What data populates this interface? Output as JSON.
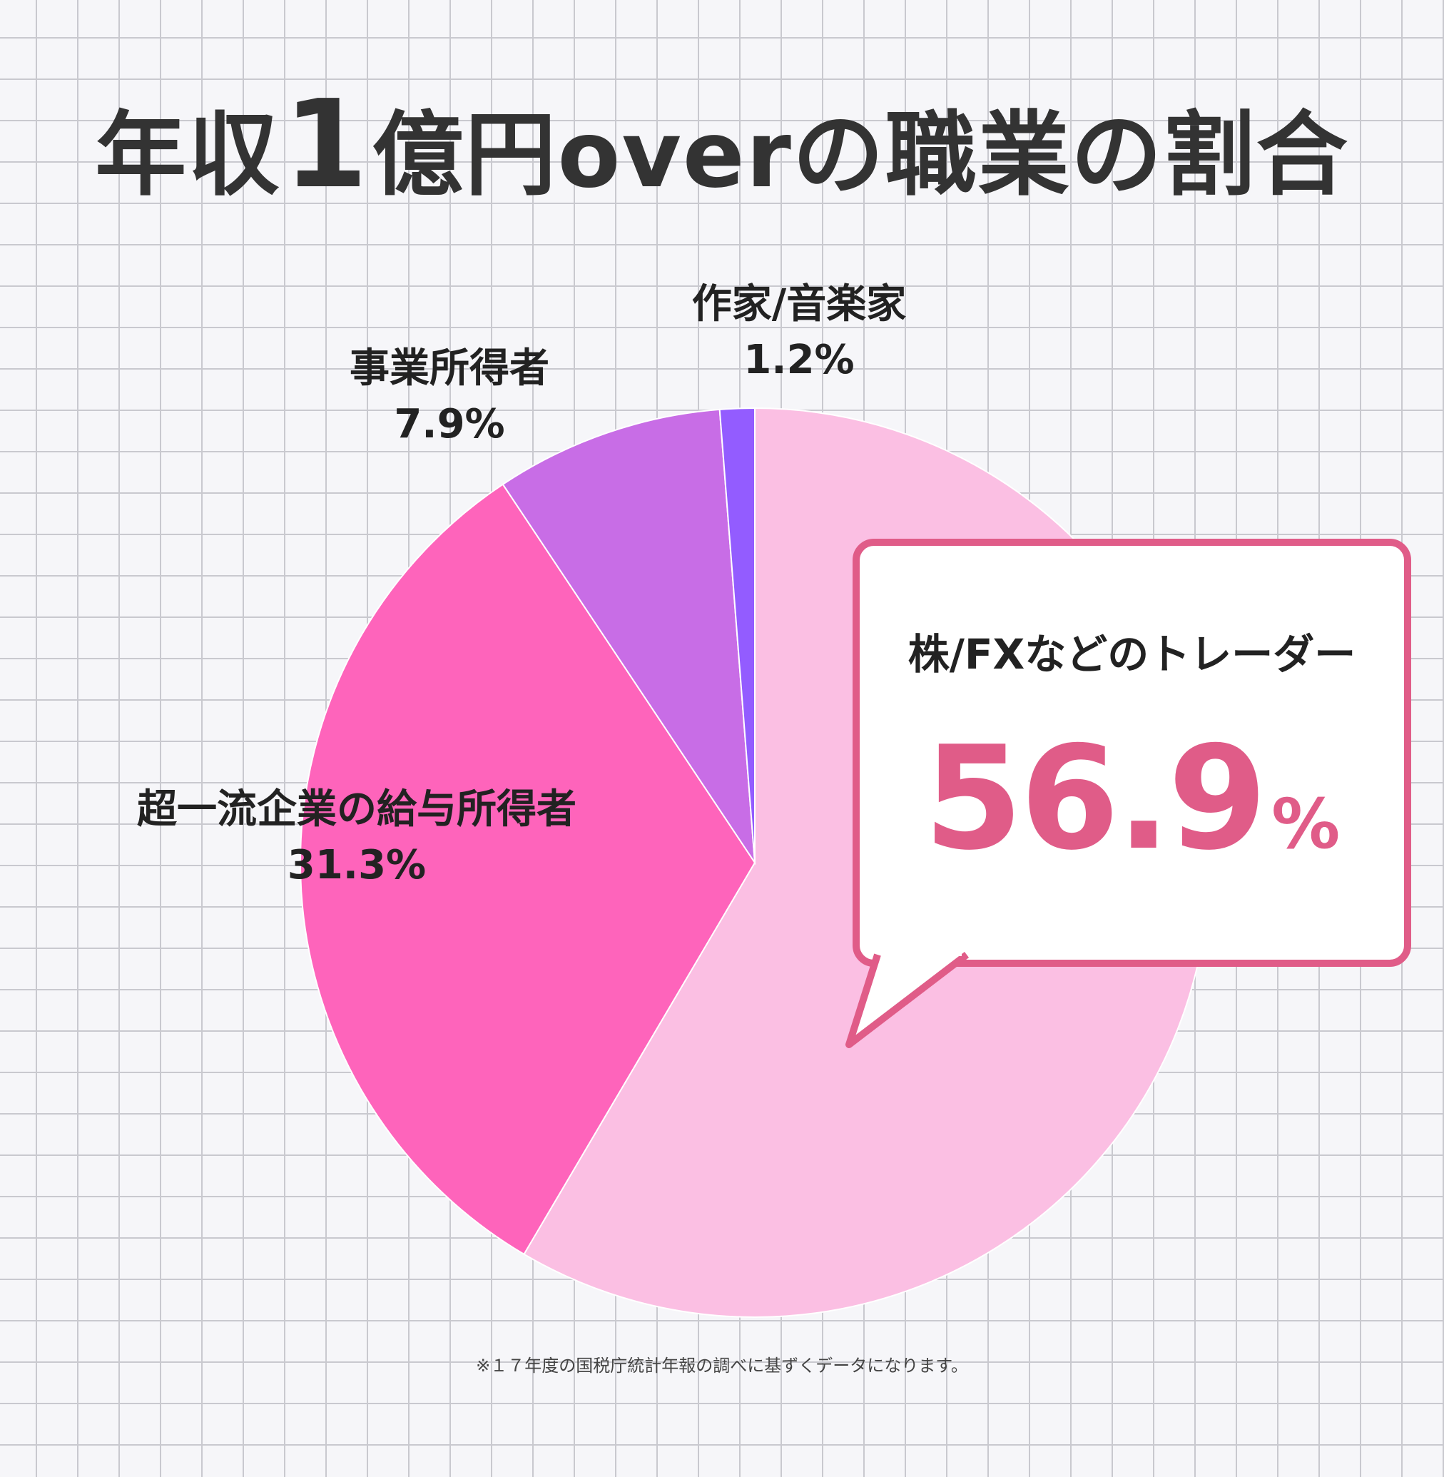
{
  "title": {
    "pre": "年収",
    "highlight": "1",
    "post": "億円overの職業の割合"
  },
  "chart_data": {
    "type": "pie",
    "title": "年収1億円overの職業の割合",
    "slices": [
      {
        "label": "株/FXなどのトレーダー",
        "value": 56.9,
        "display": "56.9",
        "unit": "%",
        "color": "#fbbfe3"
      },
      {
        "label": "超一流企業の給与所得者",
        "value": 31.3,
        "display": "31.3%",
        "color": "#fe64bb"
      },
      {
        "label": "事業所得者",
        "value": 7.9,
        "display": "7.9%",
        "color": "#c86de6"
      },
      {
        "label": "作家/音楽家",
        "value": 1.2,
        "display": "1.2%",
        "color": "#935cff"
      }
    ],
    "start": "12 o'clock, clockwise",
    "callout_color": "#e05c88"
  },
  "footnote": "※１７年度の国税庁統計年報の調べに基ずくデータになります。"
}
